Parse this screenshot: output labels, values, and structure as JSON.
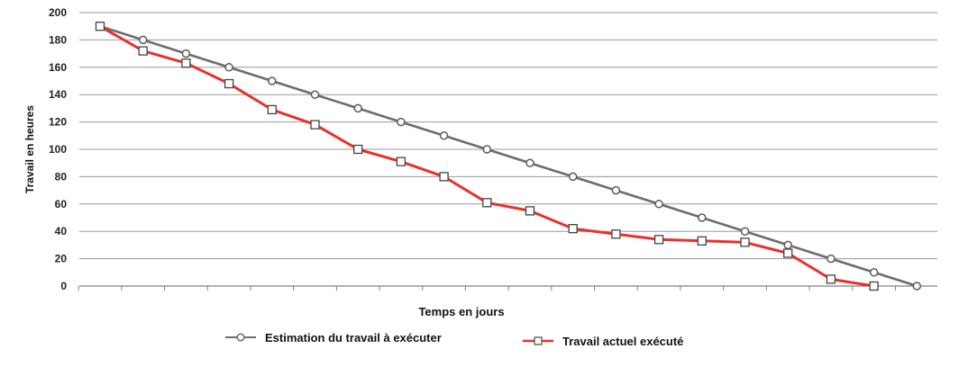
{
  "chart_data": {
    "type": "line",
    "title": "",
    "xlabel": "Temps en jours",
    "ylabel": "Travail en heures",
    "ylim": [
      0,
      200
    ],
    "yticks": [
      0,
      20,
      40,
      60,
      80,
      100,
      120,
      140,
      160,
      180,
      200
    ],
    "x": [
      0,
      1,
      2,
      3,
      4,
      5,
      6,
      7,
      8,
      9,
      10,
      11,
      12,
      13,
      14,
      15,
      16,
      17,
      18,
      19
    ],
    "grid": "horizontal",
    "legend_position": "bottom",
    "series": [
      {
        "name": "Estimation du travail à exécuter",
        "color": "#6d6d6d",
        "marker": "circle",
        "values": [
          190,
          180,
          170,
          160,
          150,
          140,
          130,
          120,
          110,
          100,
          90,
          80,
          70,
          60,
          50,
          40,
          30,
          20,
          10,
          0
        ]
      },
      {
        "name": "Travail actuel exécuté",
        "color": "#e8312b",
        "marker": "square",
        "values": [
          190,
          172,
          163,
          148,
          129,
          118,
          100,
          91,
          80,
          61,
          55,
          42,
          38,
          34,
          33,
          32,
          24,
          5,
          0,
          null
        ]
      }
    ]
  }
}
